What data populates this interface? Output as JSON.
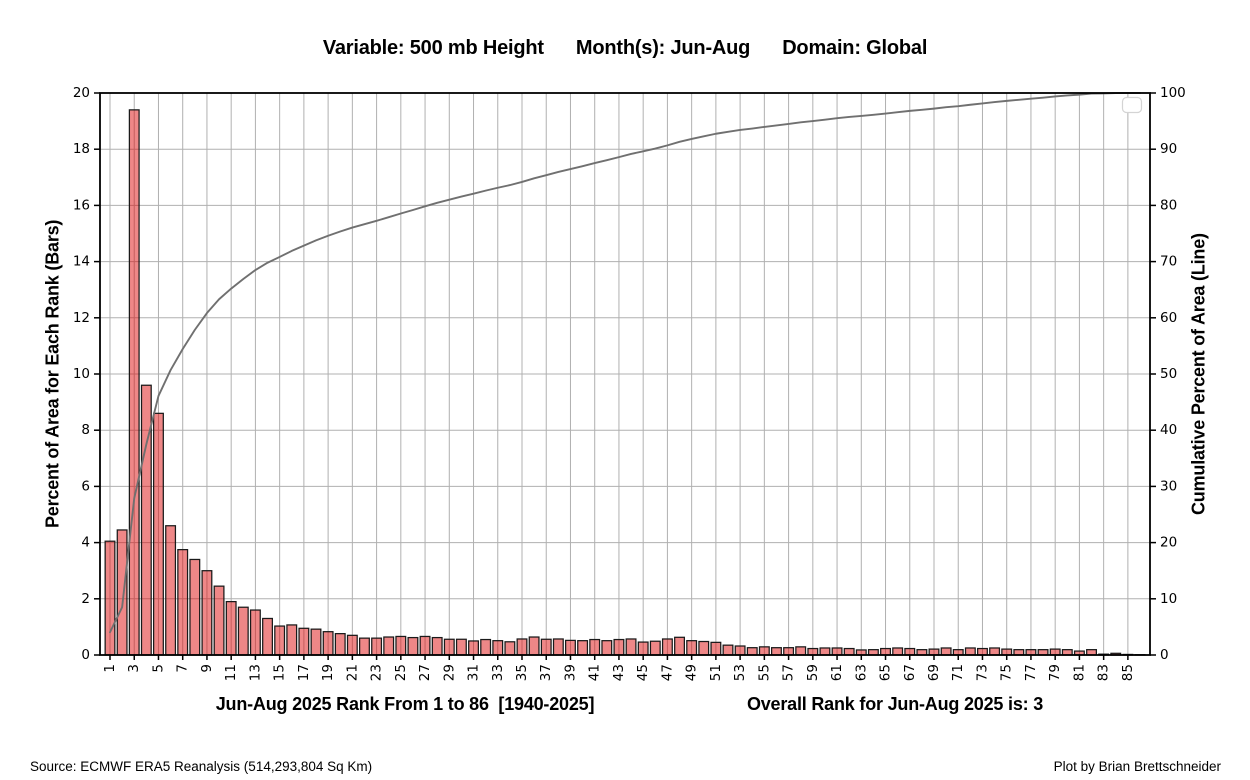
{
  "header": {
    "variable_label": "Variable: 500 mb Height",
    "months_label": "Month(s): Jun-Aug",
    "domain_label": "Domain: Global"
  },
  "captions": {
    "x_axis_caption": "Jun-Aug 2025 Rank From 1 to 86  [1940-2025]",
    "overall_rank_caption": "Overall Rank for Jun-Aug 2025 is: 3"
  },
  "footer": {
    "source": "Source: ECMWF ERA5 Reanalysis (514,293,804 Sq Km)",
    "credit": "Plot by Brian Brettschneider"
  },
  "chart_data": {
    "type": "bar",
    "title": "Variable: 500 mb Height    Month(s): Jun-Aug    Domain: Global",
    "xlabel": "Jun-Aug 2025 Rank From 1 to 86  [1940-2025]",
    "x_axis": {
      "rank_min": 1,
      "rank_max": 86,
      "tick_first": 1,
      "tick_last": 85,
      "tick_step": 2,
      "tick_rotation_deg": 90
    },
    "left_axis": {
      "label": "Percent of Area for Each Rank (Bars)",
      "min": 0,
      "max": 20,
      "tick_step": 2
    },
    "right_axis": {
      "label": "Cumulative Percent of Area (Line)",
      "min": 0,
      "max": 100,
      "tick_step": 10
    },
    "grid": true,
    "legend": {
      "visible": true,
      "empty": true,
      "position": "upper-right"
    },
    "series": [
      {
        "name": "Percent of Area for Each Rank",
        "type": "bar",
        "axis": "left",
        "values": [
          4.05,
          4.45,
          19.4,
          9.6,
          8.6,
          4.6,
          3.75,
          3.4,
          3.0,
          2.45,
          1.9,
          1.7,
          1.6,
          1.3,
          1.03,
          1.07,
          0.95,
          0.92,
          0.83,
          0.76,
          0.7,
          0.6,
          0.6,
          0.64,
          0.66,
          0.62,
          0.66,
          0.62,
          0.56,
          0.56,
          0.5,
          0.55,
          0.51,
          0.47,
          0.57,
          0.64,
          0.56,
          0.57,
          0.52,
          0.51,
          0.55,
          0.51,
          0.55,
          0.57,
          0.46,
          0.49,
          0.57,
          0.63,
          0.51,
          0.48,
          0.45,
          0.35,
          0.32,
          0.26,
          0.29,
          0.26,
          0.26,
          0.29,
          0.23,
          0.25,
          0.25,
          0.23,
          0.18,
          0.19,
          0.23,
          0.25,
          0.23,
          0.19,
          0.21,
          0.25,
          0.19,
          0.25,
          0.23,
          0.25,
          0.21,
          0.19,
          0.19,
          0.19,
          0.21,
          0.19,
          0.14,
          0.19,
          0.03,
          0.06,
          0.02,
          0.01
        ]
      },
      {
        "name": "Cumulative Percent of Area",
        "type": "line",
        "axis": "right",
        "is_cumulative_sum_of_bars": true,
        "values": [
          4.05,
          8.5,
          27.9,
          37.5,
          46.1,
          50.7,
          54.45,
          57.85,
          60.85,
          63.3,
          65.2,
          66.9,
          68.5,
          69.8,
          70.83,
          71.9,
          72.85,
          73.77,
          74.6,
          75.36,
          76.06,
          76.66,
          77.26,
          77.9,
          78.56,
          79.18,
          79.84,
          80.46,
          81.02,
          81.58,
          82.08,
          82.63,
          83.14,
          83.61,
          84.18,
          84.82,
          85.38,
          85.95,
          86.47,
          86.98,
          87.53,
          88.04,
          88.59,
          89.16,
          89.62,
          90.11,
          90.68,
          91.31,
          91.82,
          92.3,
          92.75,
          93.1,
          93.42,
          93.68,
          93.97,
          94.23,
          94.49,
          94.78,
          95.01,
          95.26,
          95.51,
          95.74,
          95.92,
          96.11,
          96.34,
          96.59,
          96.82,
          97.01,
          97.22,
          97.47,
          97.66,
          97.91,
          98.14,
          98.39,
          98.6,
          98.79,
          98.98,
          99.17,
          99.38,
          99.57,
          99.71,
          99.9,
          99.93,
          99.99,
          100.0,
          100.0
        ]
      }
    ],
    "colors": {
      "bar_fill": "#f08484",
      "bar_fill_base": "#db0000",
      "bar_fill_opacity": 0.47,
      "bar_edge": "#1a1a1a",
      "line": "#707070",
      "grid": "#b0b0b0",
      "spine": "#000000",
      "legend_border": "#d4d4d4",
      "background": "#ffffff"
    }
  }
}
